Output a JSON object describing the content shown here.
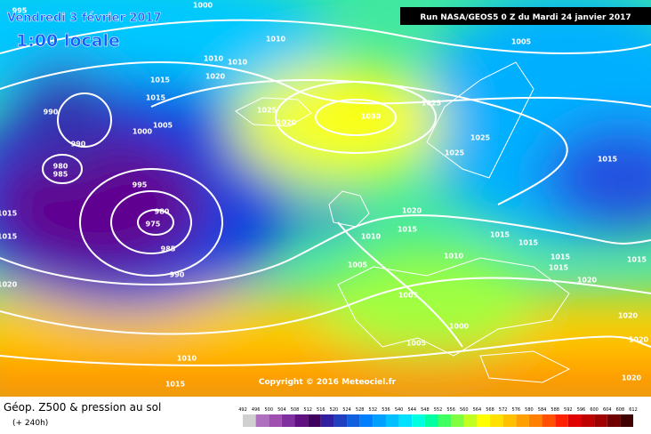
{
  "header": {
    "date": "Vendredi 3 février 2017",
    "time": "1:00 locale",
    "run": "Run NASA/GEOS5 0 Z du Mardi 24 janvier 2017"
  },
  "copyright": "Copyright © 2016 Meteociel.fr",
  "legend": {
    "title": "Géop. Z500 & pression au sol",
    "lead": "(+ 240h)",
    "scale_labels": [
      "492",
      "496",
      "500",
      "504",
      "508",
      "512",
      "516",
      "520",
      "524",
      "528",
      "532",
      "536",
      "540",
      "544",
      "548",
      "552",
      "556",
      "560",
      "564",
      "568",
      "572",
      "576",
      "580",
      "584",
      "588",
      "592",
      "596",
      "600",
      "604",
      "608",
      "612"
    ],
    "scale_colors": [
      "#d0d0d0",
      "#b070c0",
      "#a050b0",
      "#8030a0",
      "#601080",
      "#400060",
      "#3020a0",
      "#2040c0",
      "#1060e0",
      "#0080ff",
      "#00a0ff",
      "#00c0ff",
      "#00e0ff",
      "#00ffe0",
      "#00ffa0",
      "#40ff60",
      "#80ff40",
      "#c0ff20",
      "#ffff00",
      "#ffe000",
      "#ffc000",
      "#ffa000",
      "#ff8000",
      "#ff5000",
      "#ff2000",
      "#e00000",
      "#c00000",
      "#a00000",
      "#700000",
      "#400000"
    ]
  },
  "isobar_labels": [
    "995",
    "1000",
    "1010",
    "1005",
    "1010",
    "1010",
    "1020",
    "1015",
    "1015",
    "990",
    "1025",
    "1020",
    "1030",
    "1025",
    "990",
    "1000",
    "1005",
    "1025",
    "1025",
    "1015",
    "980",
    "985",
    "995",
    "1015",
    "1020",
    "980",
    "975",
    "1015",
    "1015",
    "985",
    "1010",
    "1015",
    "1015",
    "1015",
    "1015",
    "1010",
    "1005",
    "990",
    "1020",
    "1015",
    "1020",
    "1005",
    "1020",
    "1000",
    "1005",
    "1010",
    "1020",
    "1015",
    "1020"
  ]
}
